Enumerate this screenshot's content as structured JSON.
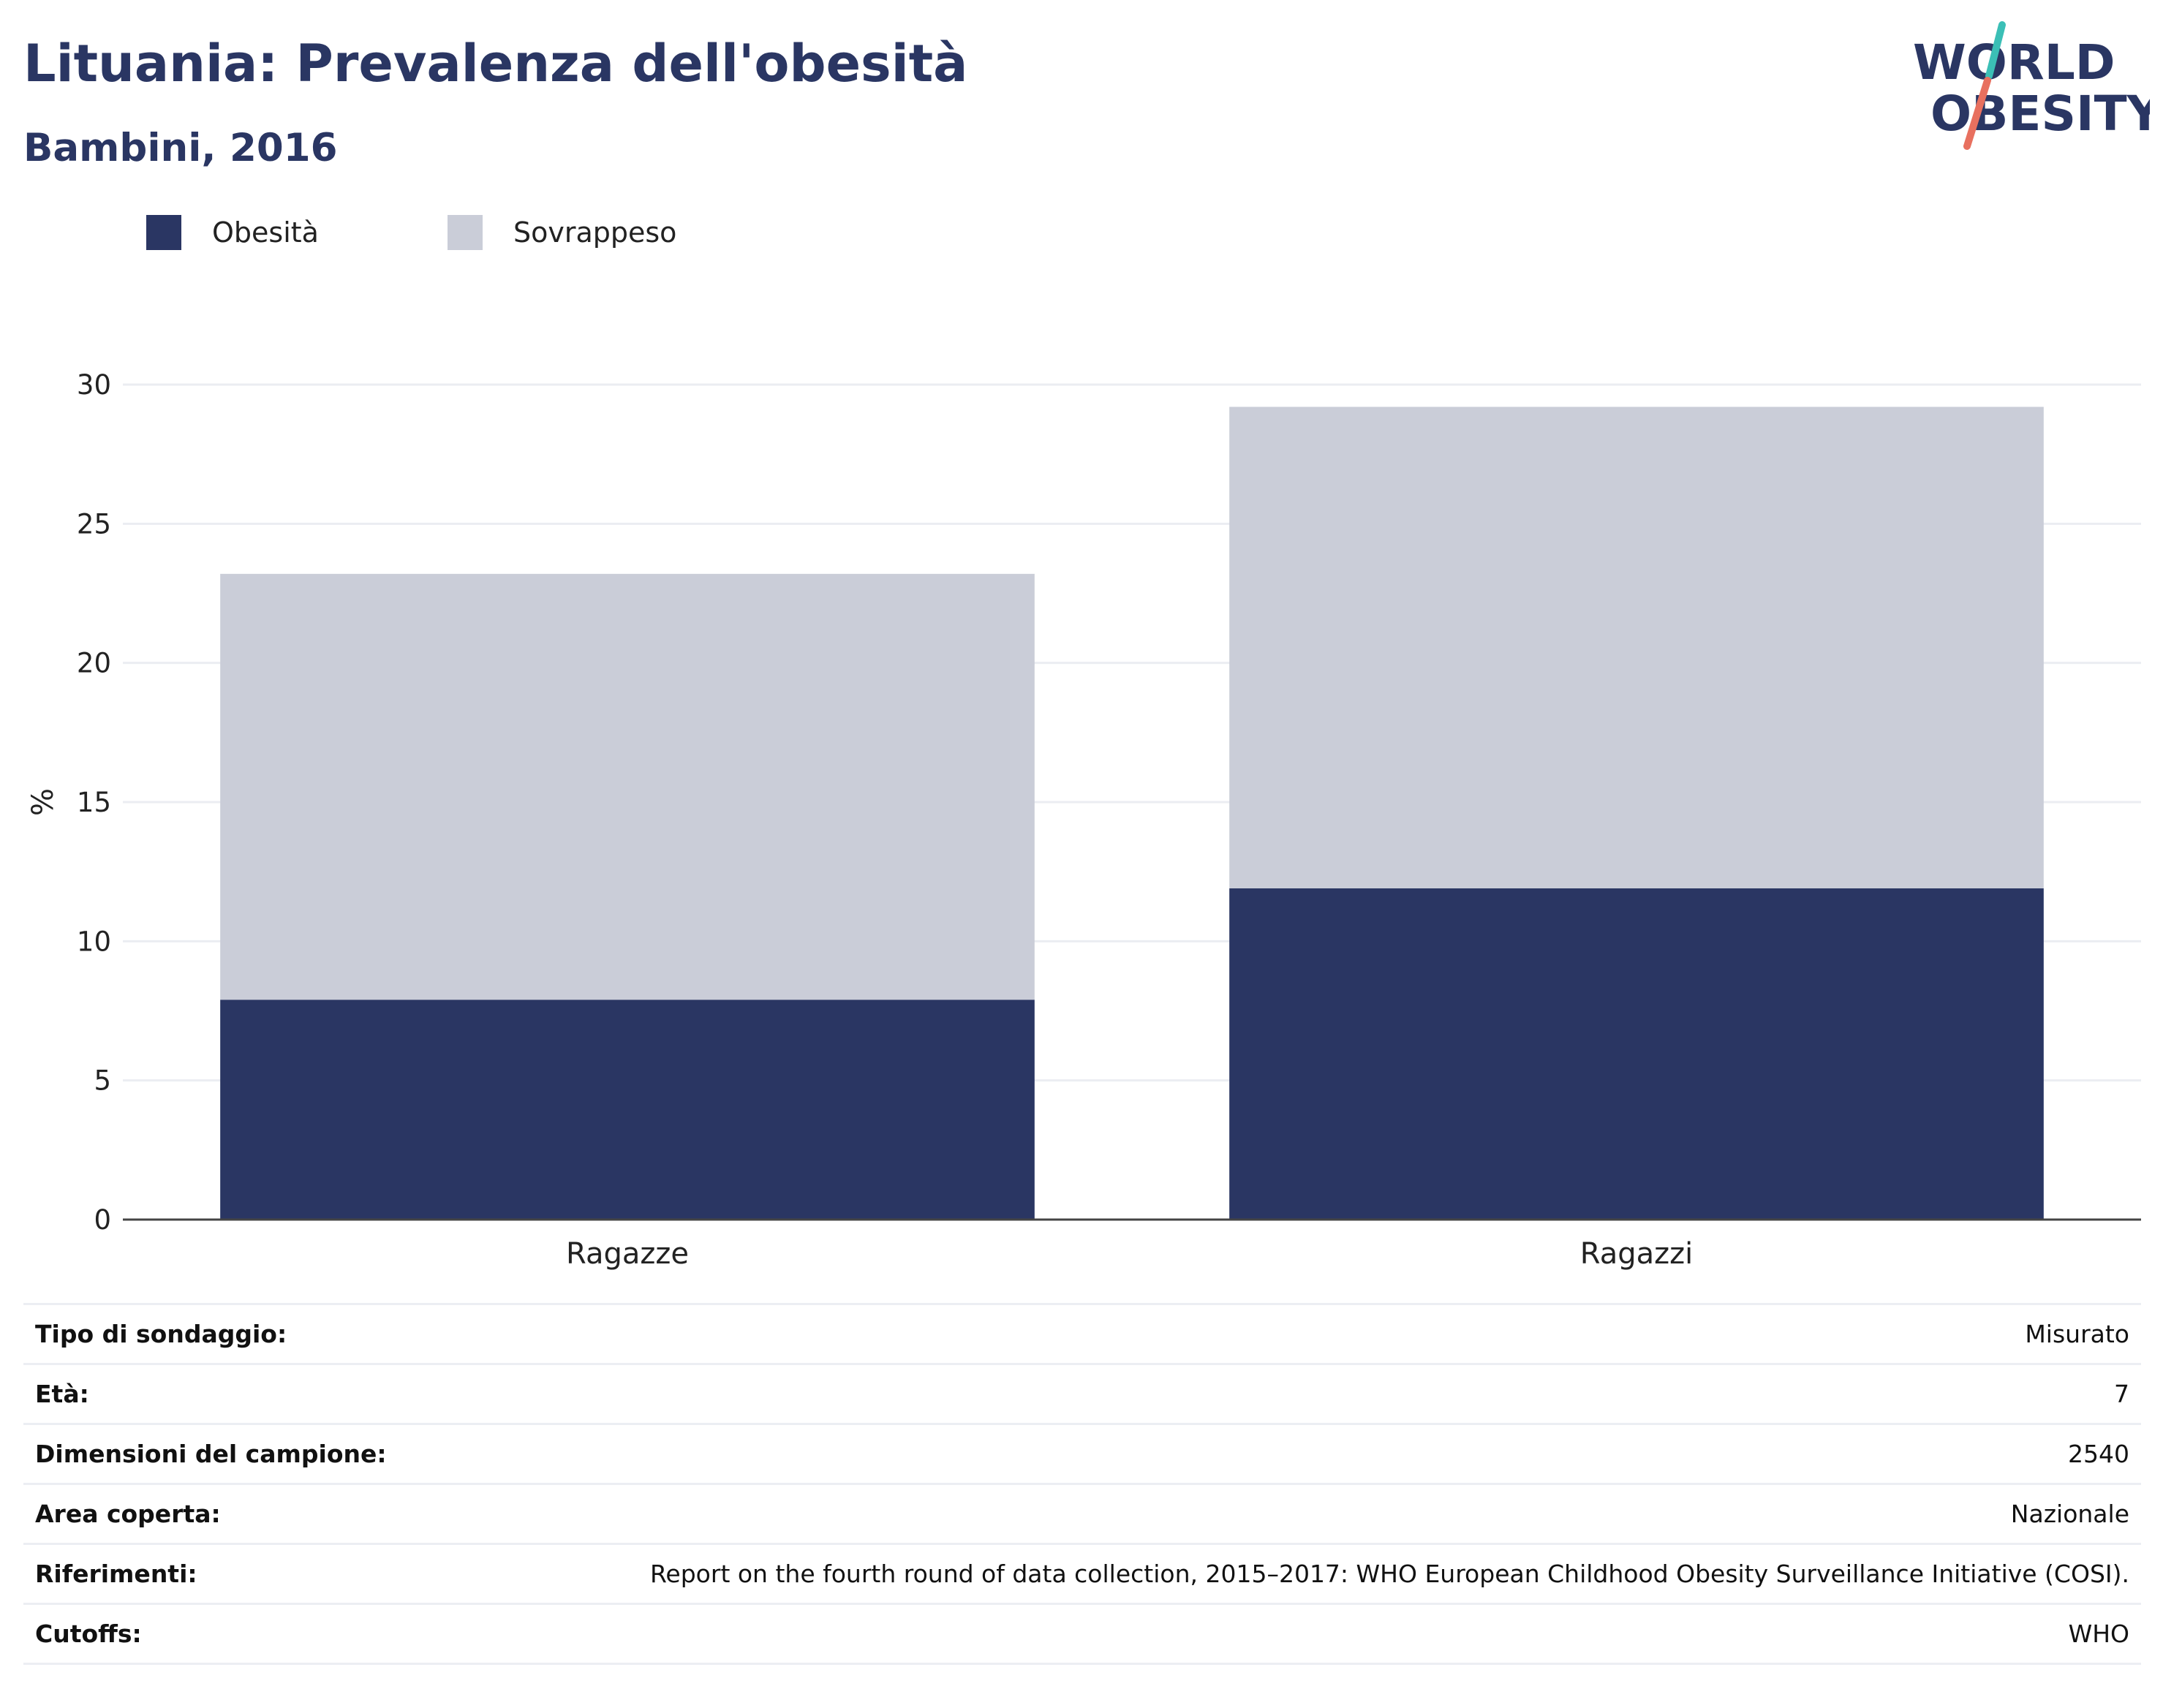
{
  "header": {
    "title": "Lituania: Prevalenza dell'obesità",
    "subtitle": "Bambini, 2016"
  },
  "logo": {
    "line1": "WORLD",
    "line2": "OBESITY",
    "slash_top_color": "#3bbfb6",
    "slash_bottom_color": "#e8705f",
    "text_color": "#2a3663"
  },
  "chart_data": {
    "type": "bar",
    "stacked": true,
    "categories": [
      "Ragazze",
      "Ragazzi"
    ],
    "series": [
      {
        "name": "Obesità",
        "color": "#2a3663",
        "values": [
          7.9,
          11.9
        ]
      },
      {
        "name": "Sovrappeso",
        "color": "#cacdd8",
        "values": [
          15.3,
          17.3
        ]
      }
    ],
    "ylabel": "%",
    "ylim": [
      0,
      30
    ],
    "yticks": [
      0,
      5,
      10,
      15,
      20,
      25,
      30
    ],
    "grid": true,
    "legend_position": "top-left"
  },
  "info": [
    {
      "key": "Tipo di sondaggio:",
      "value": "Misurato"
    },
    {
      "key": "Età:",
      "value": "7"
    },
    {
      "key": "Dimensioni del campione:",
      "value": "2540"
    },
    {
      "key": "Area coperta:",
      "value": "Nazionale"
    },
    {
      "key": "Riferimenti:",
      "value": "Report on the fourth round of data collection, 2015–2017: WHO European Childhood Obesity Surveillance Initiative (COSI)."
    },
    {
      "key": "Cutoffs:",
      "value": "WHO"
    }
  ]
}
